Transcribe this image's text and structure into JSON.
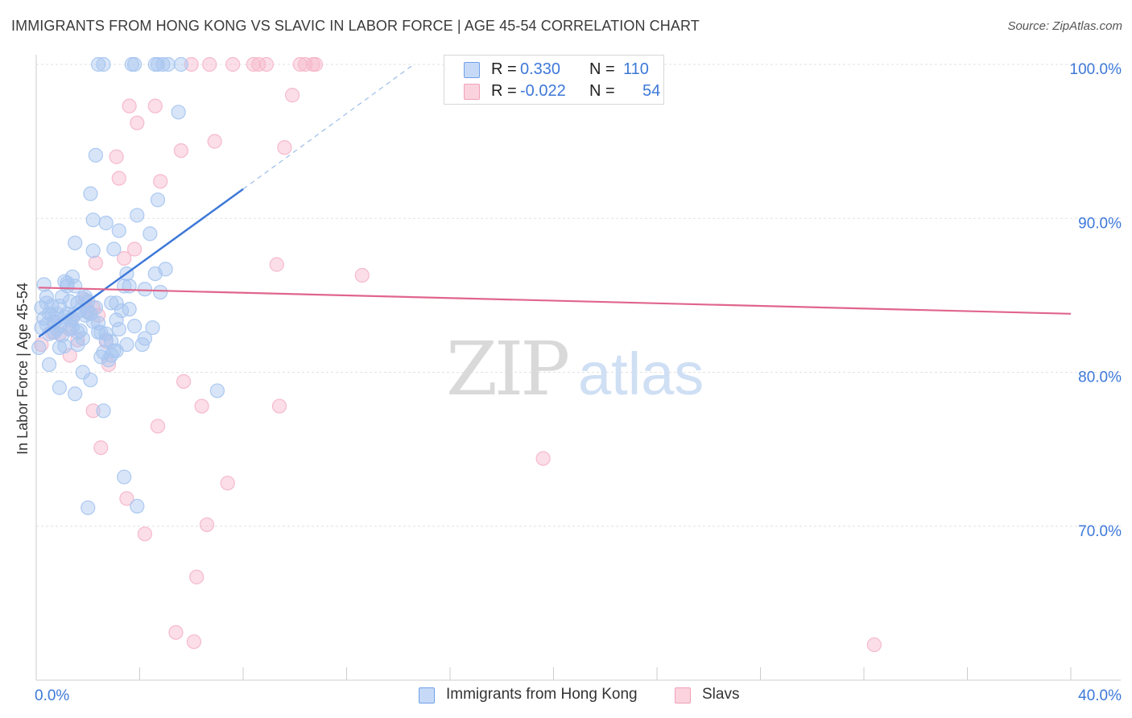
{
  "header": {
    "title": "IMMIGRANTS FROM HONG KONG VS SLAVIC IN LABOR FORCE | AGE 45-54 CORRELATION CHART",
    "source": "Source: ZipAtlas.com"
  },
  "watermark": {
    "zip": "ZIP",
    "atlas": "atlas"
  },
  "legend": {
    "r_label": "R =",
    "n_label": "N =",
    "rows": [
      {
        "r": "0.330",
        "n": "110",
        "color": "#6fa0e8",
        "fill": "#c6daf7"
      },
      {
        "r": "-0.022",
        "n": "54",
        "color": "#f0a0b8",
        "fill": "#fbd3df"
      }
    ]
  },
  "bottom_legend": {
    "items": [
      {
        "label": "Immigrants from Hong Kong"
      },
      {
        "label": "Slavs"
      }
    ]
  },
  "chart_data": {
    "type": "scatter",
    "title": "IMMIGRANTS FROM HONG KONG VS SLAVIC IN LABOR FORCE | AGE 45-54 CORRELATION CHART",
    "xlabel": "",
    "ylabel": "In Labor Force | Age 45-54",
    "xlim": [
      0,
      40
    ],
    "ylim": [
      60,
      100
    ],
    "x_tick_labels": [
      "0.0%",
      "40.0%"
    ],
    "y_ticks": [
      70,
      80,
      90,
      100
    ],
    "y_tick_labels": [
      "70.0%",
      "80.0%",
      "90.0%",
      "100.0%"
    ],
    "grid": true,
    "series": [
      {
        "name": "Immigrants from Hong Kong",
        "color": "#3d78d8",
        "marker_fill": "#a8c6f0",
        "R": 0.33,
        "N": 110,
        "trend": {
          "x": [
            0.1,
            8.0
          ],
          "y": [
            82.3,
            91.9
          ],
          "dashed_to": [
            14.6,
            100.0
          ]
        },
        "points": [
          [
            2.4,
            100
          ],
          [
            2.6,
            100
          ],
          [
            3.7,
            100
          ],
          [
            3.8,
            100
          ],
          [
            4.6,
            100
          ],
          [
            4.7,
            100
          ],
          [
            4.9,
            100
          ],
          [
            5.1,
            100
          ],
          [
            5.6,
            100
          ],
          [
            5.5,
            96.9
          ],
          [
            2.3,
            94.1
          ],
          [
            2.1,
            91.6
          ],
          [
            4.7,
            91.2
          ],
          [
            3.9,
            90.2
          ],
          [
            2.2,
            89.9
          ],
          [
            2.7,
            89.7
          ],
          [
            3.2,
            89.2
          ],
          [
            4.4,
            89.0
          ],
          [
            1.5,
            88.4
          ],
          [
            3.0,
            88.0
          ],
          [
            2.2,
            87.9
          ],
          [
            5.0,
            86.7
          ],
          [
            3.5,
            86.4
          ],
          [
            4.6,
            86.4
          ],
          [
            1.4,
            86.2
          ],
          [
            1.1,
            85.9
          ],
          [
            0.3,
            85.7
          ],
          [
            1.2,
            85.6
          ],
          [
            1.5,
            85.6
          ],
          [
            3.6,
            85.6
          ],
          [
            3.4,
            85.6
          ],
          [
            4.2,
            85.4
          ],
          [
            4.8,
            85.2
          ],
          [
            1.8,
            84.8
          ],
          [
            1.0,
            84.9
          ],
          [
            2.0,
            84.6
          ],
          [
            0.4,
            84.5
          ],
          [
            1.6,
            84.5
          ],
          [
            3.1,
            84.5
          ],
          [
            0.6,
            84.3
          ],
          [
            2.3,
            84.2
          ],
          [
            3.6,
            84.1
          ],
          [
            1.7,
            84.0
          ],
          [
            2.0,
            83.9
          ],
          [
            1.2,
            83.8
          ],
          [
            1.5,
            83.8
          ],
          [
            0.8,
            83.8
          ],
          [
            0.5,
            83.8
          ],
          [
            1.1,
            83.6
          ],
          [
            1.4,
            83.5
          ],
          [
            0.7,
            83.3
          ],
          [
            3.1,
            83.4
          ],
          [
            2.4,
            83.2
          ],
          [
            0.4,
            83.1
          ],
          [
            0.9,
            83.0
          ],
          [
            0.2,
            82.9
          ],
          [
            3.2,
            82.8
          ],
          [
            4.5,
            82.9
          ],
          [
            1.3,
            82.8
          ],
          [
            1.6,
            82.6
          ],
          [
            2.5,
            82.6
          ],
          [
            0.5,
            82.5
          ],
          [
            1.0,
            82.4
          ],
          [
            1.8,
            82.2
          ],
          [
            2.7,
            82.5
          ],
          [
            4.2,
            82.2
          ],
          [
            2.9,
            82.0
          ],
          [
            3.5,
            81.8
          ],
          [
            4.1,
            81.8
          ],
          [
            1.1,
            81.7
          ],
          [
            0.9,
            81.6
          ],
          [
            3.1,
            81.4
          ],
          [
            2.6,
            81.3
          ],
          [
            2.9,
            81.1
          ],
          [
            2.5,
            81.0
          ],
          [
            2.8,
            80.8
          ],
          [
            0.5,
            80.5
          ],
          [
            1.8,
            80.0
          ],
          [
            2.1,
            79.5
          ],
          [
            0.9,
            79.0
          ],
          [
            1.5,
            78.6
          ],
          [
            7.0,
            78.8
          ],
          [
            2.6,
            77.5
          ],
          [
            3.4,
            73.2
          ],
          [
            2.0,
            71.2
          ],
          [
            3.9,
            71.3
          ],
          [
            0.1,
            81.6
          ],
          [
            0.2,
            84.2
          ],
          [
            0.6,
            83.7
          ],
          [
            1.3,
            84.6
          ],
          [
            1.9,
            83.7
          ],
          [
            2.2,
            83.3
          ],
          [
            0.8,
            82.8
          ],
          [
            1.4,
            82.9
          ],
          [
            3.0,
            81.4
          ],
          [
            1.7,
            82.7
          ],
          [
            0.3,
            83.5
          ],
          [
            0.7,
            82.6
          ],
          [
            1.9,
            84.9
          ],
          [
            2.4,
            82.6
          ],
          [
            1.2,
            85.8
          ],
          [
            3.3,
            84.0
          ],
          [
            0.4,
            84.9
          ],
          [
            2.7,
            82.1
          ],
          [
            1.6,
            81.8
          ],
          [
            2.1,
            83.8
          ],
          [
            3.8,
            83.0
          ],
          [
            0.9,
            84.3
          ],
          [
            1.3,
            83.4
          ],
          [
            2.9,
            84.5
          ]
        ]
      },
      {
        "name": "Slavs",
        "color": "#e0658c",
        "marker_fill": "#f6b6ca",
        "R": -0.022,
        "N": 54,
        "trend": {
          "x": [
            0.1,
            40.0
          ],
          "y": [
            85.5,
            83.8
          ]
        },
        "points": [
          [
            6.0,
            100
          ],
          [
            6.7,
            100
          ],
          [
            7.6,
            100
          ],
          [
            8.4,
            100
          ],
          [
            8.6,
            100
          ],
          [
            8.9,
            100
          ],
          [
            10.2,
            100
          ],
          [
            10.4,
            100
          ],
          [
            10.7,
            100
          ],
          [
            10.8,
            100
          ],
          [
            9.9,
            98.0
          ],
          [
            3.6,
            97.3
          ],
          [
            4.6,
            97.3
          ],
          [
            3.9,
            96.2
          ],
          [
            5.6,
            94.4
          ],
          [
            6.9,
            95.0
          ],
          [
            9.6,
            94.6
          ],
          [
            3.1,
            94.0
          ],
          [
            3.2,
            92.6
          ],
          [
            4.8,
            92.4
          ],
          [
            3.8,
            88.0
          ],
          [
            2.3,
            87.1
          ],
          [
            3.4,
            87.4
          ],
          [
            9.3,
            87.0
          ],
          [
            12.6,
            86.3
          ],
          [
            1.9,
            84.7
          ],
          [
            2.0,
            84.0
          ],
          [
            2.4,
            83.7
          ],
          [
            1.4,
            83.5
          ],
          [
            1.3,
            82.8
          ],
          [
            0.7,
            83.3
          ],
          [
            0.6,
            82.6
          ],
          [
            1.6,
            82.1
          ],
          [
            2.7,
            82.0
          ],
          [
            1.3,
            81.1
          ],
          [
            0.2,
            81.8
          ],
          [
            2.8,
            80.5
          ],
          [
            5.7,
            79.4
          ],
          [
            6.4,
            77.8
          ],
          [
            9.4,
            77.8
          ],
          [
            2.2,
            77.5
          ],
          [
            4.7,
            76.5
          ],
          [
            2.5,
            75.1
          ],
          [
            19.6,
            74.4
          ],
          [
            7.4,
            72.8
          ],
          [
            3.5,
            71.8
          ],
          [
            6.6,
            70.1
          ],
          [
            4.2,
            69.5
          ],
          [
            6.2,
            66.7
          ],
          [
            5.4,
            63.1
          ],
          [
            6.1,
            62.5
          ],
          [
            32.4,
            62.3
          ],
          [
            0.9,
            82.5
          ],
          [
            2.2,
            84.2
          ]
        ]
      }
    ]
  }
}
